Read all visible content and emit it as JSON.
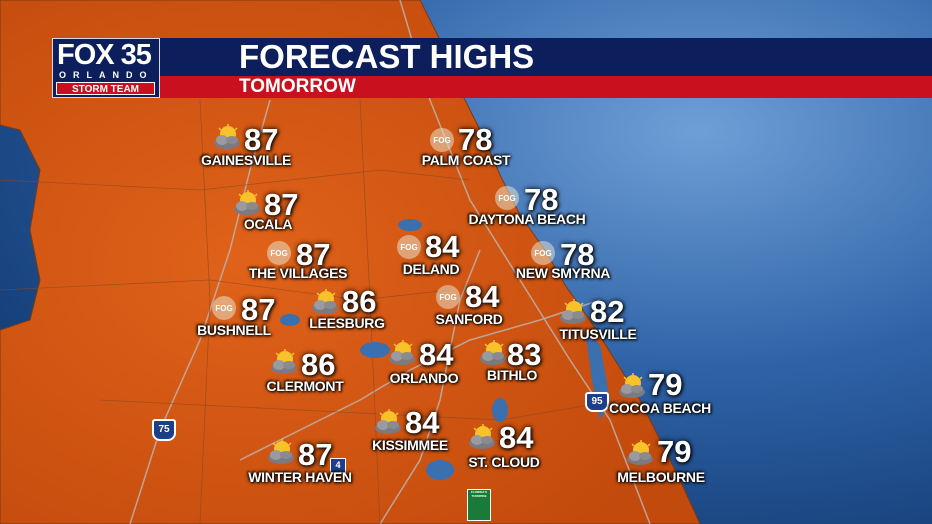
{
  "header": {
    "logo": {
      "brand": "FOX 35",
      "city": "ORLANDO",
      "team": "STORM TEAM"
    },
    "title": "FORECAST HIGHS",
    "subtitle": "TOMORROW"
  },
  "colors": {
    "land": "#d9560f",
    "ocean": "#2d62a6",
    "header_navy": "#0c1f5c",
    "header_red": "#c8101e"
  },
  "highways": [
    "75",
    "95",
    "4",
    "FLORIDA'S TURNPIKE"
  ],
  "cities": [
    {
      "name": "GAINESVILLE",
      "high": "87",
      "icon": "partly-sunny-icon"
    },
    {
      "name": "PALM COAST",
      "high": "78",
      "icon": "fog-icon",
      "icon_text": "FOG"
    },
    {
      "name": "OCALA",
      "high": "87",
      "icon": "partly-sunny-icon"
    },
    {
      "name": "DAYTONA BEACH",
      "high": "78",
      "icon": "fog-icon",
      "icon_text": "FOG"
    },
    {
      "name": "THE VILLAGES",
      "high": "87",
      "icon": "fog-icon",
      "icon_text": "FOG"
    },
    {
      "name": "DELAND",
      "high": "84",
      "icon": "fog-icon",
      "icon_text": "FOG"
    },
    {
      "name": "NEW SMYRNA",
      "high": "78",
      "icon": "fog-icon",
      "icon_text": "FOG"
    },
    {
      "name": "BUSHNELL",
      "high": "87",
      "icon": "fog-icon",
      "icon_text": "FOG"
    },
    {
      "name": "LEESBURG",
      "high": "86",
      "icon": "partly-sunny-icon"
    },
    {
      "name": "SANFORD",
      "high": "84",
      "icon": "fog-icon",
      "icon_text": "FOG"
    },
    {
      "name": "TITUSVILLE",
      "high": "82",
      "icon": "partly-sunny-icon"
    },
    {
      "name": "CLERMONT",
      "high": "86",
      "icon": "partly-sunny-icon"
    },
    {
      "name": "ORLANDO",
      "high": "84",
      "icon": "partly-sunny-icon"
    },
    {
      "name": "BITHLO",
      "high": "83",
      "icon": "partly-sunny-icon"
    },
    {
      "name": "COCOA BEACH",
      "high": "79",
      "icon": "partly-sunny-icon"
    },
    {
      "name": "KISSIMMEE",
      "high": "84",
      "icon": "partly-sunny-icon"
    },
    {
      "name": "ST. CLOUD",
      "high": "84",
      "icon": "partly-sunny-icon"
    },
    {
      "name": "WINTER HAVEN",
      "high": "87",
      "icon": "partly-sunny-icon"
    },
    {
      "name": "MELBOURNE",
      "high": "79",
      "icon": "partly-sunny-icon"
    }
  ]
}
